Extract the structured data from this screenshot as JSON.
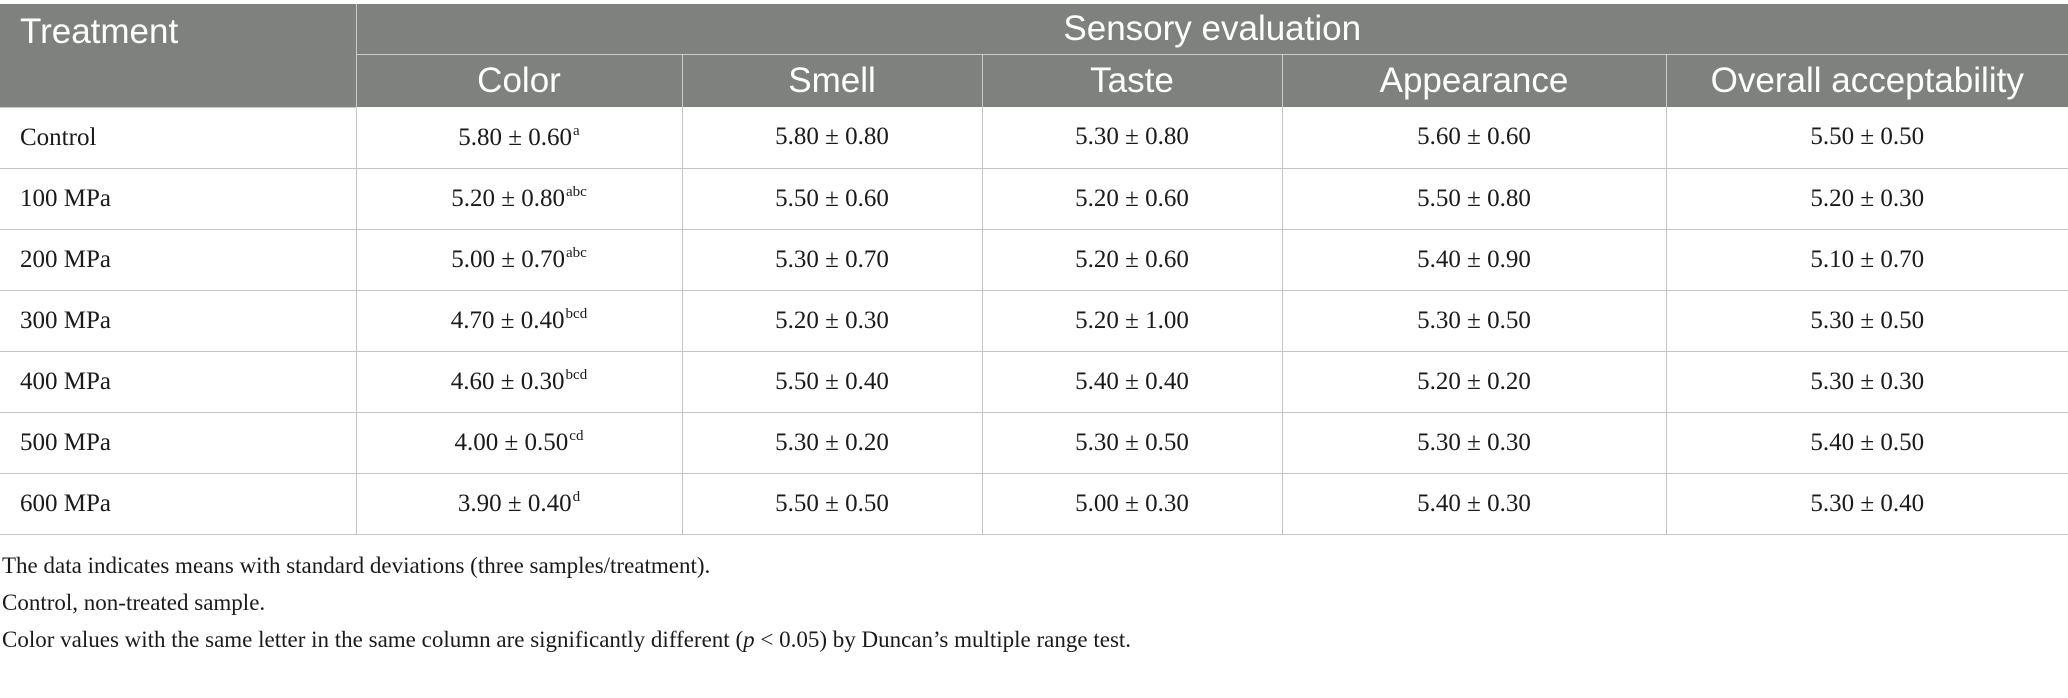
{
  "table": {
    "header": {
      "treatment": "Treatment",
      "group": "Sensory evaluation",
      "columns": [
        "Color",
        "Smell",
        "Taste",
        "Appearance",
        "Overall acceptability"
      ]
    },
    "rows": [
      {
        "treatment": "Control",
        "color": "5.80 ± 0.60",
        "color_sup": "a",
        "smell": "5.80 ± 0.80",
        "taste": "5.30 ± 0.80",
        "appearance": "5.60 ± 0.60",
        "overall": "5.50 ± 0.50"
      },
      {
        "treatment": "100 MPa",
        "color": "5.20 ± 0.80",
        "color_sup": "abc",
        "smell": "5.50 ± 0.60",
        "taste": "5.20 ± 0.60",
        "appearance": "5.50 ± 0.80",
        "overall": "5.20 ± 0.30"
      },
      {
        "treatment": "200 MPa",
        "color": "5.00 ± 0.70",
        "color_sup": "abc",
        "smell": "5.30 ± 0.70",
        "taste": "5.20 ± 0.60",
        "appearance": "5.40 ± 0.90",
        "overall": "5.10 ± 0.70"
      },
      {
        "treatment": "300 MPa",
        "color": "4.70 ± 0.40",
        "color_sup": "bcd",
        "smell": "5.20 ± 0.30",
        "taste": "5.20 ± 1.00",
        "appearance": "5.30 ± 0.50",
        "overall": "5.30 ± 0.50"
      },
      {
        "treatment": "400 MPa",
        "color": "4.60 ± 0.30",
        "color_sup": "bcd",
        "smell": "5.50 ± 0.40",
        "taste": "5.40 ± 0.40",
        "appearance": "5.20 ± 0.20",
        "overall": "5.30 ± 0.30"
      },
      {
        "treatment": "500 MPa",
        "color": "4.00 ± 0.50",
        "color_sup": "cd",
        "smell": "5.30 ± 0.20",
        "taste": "5.30 ± 0.50",
        "appearance": "5.30 ± 0.30",
        "overall": "5.40 ± 0.50"
      },
      {
        "treatment": "600 MPa",
        "color": "3.90 ± 0.40",
        "color_sup": "d",
        "smell": "5.50 ± 0.50",
        "taste": "5.00 ± 0.30",
        "appearance": "5.40 ± 0.30",
        "overall": "5.30 ± 0.40"
      }
    ]
  },
  "notes": {
    "line1": "The data indicates means with standard deviations (three samples/treatment).",
    "line2": "Control, non-treated sample.",
    "line3_pre": "Color values with the same letter in the same column are significantly different (",
    "line3_italic": "p",
    "line3_post": " < 0.05) by Duncan’s multiple range test."
  },
  "colors": {
    "header_bg": "#7f817f",
    "header_text": "#ffffff",
    "rule": "#c4c4c4"
  }
}
